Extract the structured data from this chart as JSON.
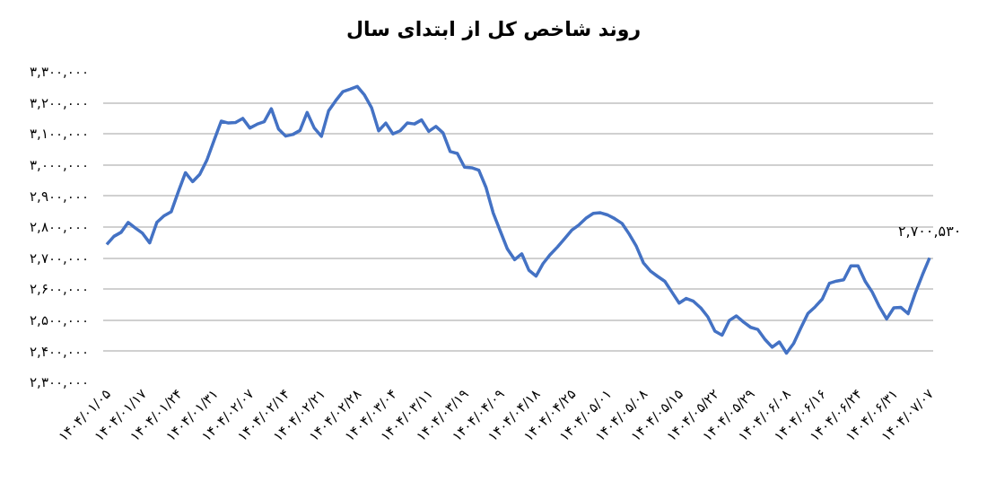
{
  "chart_data": {
    "type": "line",
    "title": "روند شاخص کل از ابتدای سال",
    "categories": [
      "۱۴۰۴/۰۱/۰۵",
      null,
      null,
      null,
      null,
      "۱۴۰۴/۰۱/۱۷",
      null,
      null,
      null,
      null,
      "۱۴۰۴/۰۱/۲۴",
      null,
      null,
      null,
      null,
      "۱۴۰۴/۰۱/۳۱",
      null,
      null,
      null,
      null,
      "۱۴۰۴/۰۲/۰۷",
      null,
      null,
      null,
      null,
      "۱۴۰۴/۰۲/۱۴",
      null,
      null,
      null,
      null,
      "۱۴۰۴/۰۲/۲۱",
      null,
      null,
      null,
      null,
      "۱۴۰۴/۰۲/۲۸",
      null,
      null,
      null,
      null,
      "۱۴۰۴/۰۳/۰۴",
      null,
      null,
      null,
      null,
      "۱۴۰۴/۰۳/۱۱",
      null,
      null,
      null,
      null,
      "۱۴۰۴/۰۳/۱۹",
      null,
      null,
      null,
      null,
      "۱۴۰۴/۰۴/۰۹",
      null,
      null,
      null,
      null,
      "۱۴۰۴/۰۴/۱۸",
      null,
      null,
      null,
      null,
      "۱۴۰۴/۰۴/۲۵",
      null,
      null,
      null,
      null,
      "۱۴۰۴/۰۵/۰۱",
      null,
      null,
      null,
      null,
      "۱۴۰۴/۰۵/۰۸",
      null,
      null,
      null,
      null,
      "۱۴۰۴/۰۵/۱۵",
      null,
      null,
      null,
      null,
      "۱۴۰۴/۰۵/۲۲",
      null,
      null,
      null,
      null,
      "۱۴۰۴/۰۵/۲۹",
      null,
      null,
      null,
      null,
      "۱۴۰۴/۰۶/۰۸",
      null,
      null,
      null,
      null,
      "۱۴۰۴/۰۶/۱۶",
      null,
      null,
      null,
      null,
      "۱۴۰۴/۰۶/۲۴",
      null,
      null,
      null,
      null,
      "۱۴۰۴/۰۶/۳۱",
      null,
      null,
      null,
      null,
      "۱۴۰۴/۰۷/۰۷"
    ],
    "series": [
      {
        "color": "#4472c4",
        "values": [
          2744000,
          2770000,
          2783000,
          2815000,
          2797000,
          2780000,
          2749000,
          2815000,
          2836000,
          2849000,
          2914000,
          2975000,
          2946000,
          2970000,
          3016000,
          3079000,
          3141000,
          3135000,
          3137000,
          3150000,
          3119000,
          3131000,
          3139000,
          3181000,
          3116000,
          3093000,
          3098000,
          3111000,
          3169000,
          3119000,
          3092000,
          3174000,
          3207000,
          3236000,
          3244000,
          3253000,
          3226000,
          3185000,
          3110000,
          3135000,
          3100000,
          3110000,
          3135000,
          3132000,
          3145000,
          3108000,
          3124000,
          3103000,
          3043000,
          3037000,
          2993000,
          2991000,
          2983000,
          2928000,
          2846000,
          2787000,
          2729000,
          2695000,
          2714000,
          2661000,
          2642000,
          2683000,
          2712000,
          2736000,
          2763000,
          2790000,
          2807000,
          2829000,
          2844000,
          2846000,
          2839000,
          2827000,
          2812000,
          2778000,
          2739000,
          2685000,
          2658000,
          2641000,
          2625000,
          2590000,
          2555000,
          2570000,
          2561000,
          2540000,
          2511000,
          2465000,
          2452000,
          2499000,
          2514000,
          2494000,
          2477000,
          2470000,
          2438000,
          2413000,
          2430000,
          2394000,
          2425000,
          2475000,
          2522000,
          2543000,
          2568000,
          2619000,
          2626000,
          2630000,
          2675000,
          2675000,
          2625000,
          2590000,
          2543000,
          2504000,
          2540000,
          2541000,
          2521000,
          2587000,
          2646000,
          2700530
        ]
      }
    ],
    "annotations": [
      {
        "text": "۲,۷۰۰,۵۳۰",
        "x": "۱۴۰۴/۰۷/۰۷",
        "y": 2700530
      }
    ],
    "ylim": [
      2300000,
      3300000
    ],
    "yticks": [
      {
        "value": 2300000,
        "label": "۲,۳۰۰,۰۰۰"
      },
      {
        "value": 2400000,
        "label": "۲,۴۰۰,۰۰۰"
      },
      {
        "value": 2500000,
        "label": "۲,۵۰۰,۰۰۰"
      },
      {
        "value": 2600000,
        "label": "۲,۶۰۰,۰۰۰"
      },
      {
        "value": 2700000,
        "label": "۲,۷۰۰,۰۰۰"
      },
      {
        "value": 2800000,
        "label": "۲,۸۰۰,۰۰۰"
      },
      {
        "value": 2900000,
        "label": "۲,۹۰۰,۰۰۰"
      },
      {
        "value": 3000000,
        "label": "۳,۰۰۰,۰۰۰"
      },
      {
        "value": 3100000,
        "label": "۳,۱۰۰,۰۰۰"
      },
      {
        "value": 3200000,
        "label": "۳,۲۰۰,۰۰۰"
      },
      {
        "value": 3300000,
        "label": "۳,۳۰۰,۰۰۰"
      }
    ],
    "grid": "y",
    "marker": "none",
    "line_style": "solid"
  }
}
